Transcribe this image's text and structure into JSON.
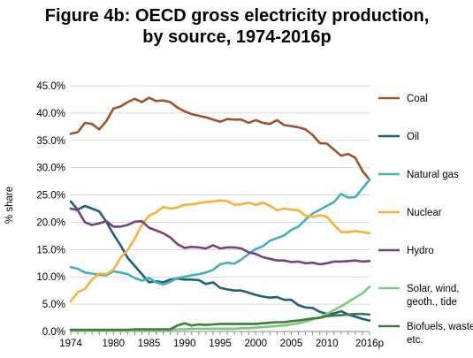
{
  "chart_data": {
    "type": "line",
    "title": "Figure 4b: OECD gross electricity production,",
    "subtitle": "by source, 1974-2016p",
    "ylabel": "% share",
    "xlabel": "",
    "ylim": [
      0,
      45
    ],
    "xlim": [
      1974,
      2016
    ],
    "y_ticks": [
      "0.0%",
      "5.0%",
      "10.0%",
      "15.0%",
      "20.0%",
      "25.0%",
      "30.0%",
      "35.0%",
      "40.0%",
      "45.0%"
    ],
    "x_ticks": [
      "1974",
      "1980",
      "1985",
      "1990",
      "1995",
      "2000",
      "2005",
      "2010",
      "2016p"
    ],
    "legend_position": "right",
    "x": [
      1974,
      1975,
      1976,
      1977,
      1978,
      1979,
      1980,
      1981,
      1982,
      1983,
      1984,
      1985,
      1986,
      1987,
      1988,
      1989,
      1990,
      1991,
      1992,
      1993,
      1994,
      1995,
      1996,
      1997,
      1998,
      1999,
      2000,
      2001,
      2002,
      2003,
      2004,
      2005,
      2006,
      2007,
      2008,
      2009,
      2010,
      2011,
      2012,
      2013,
      2014,
      2015,
      2016
    ],
    "series": [
      {
        "name": "Coal",
        "color": "#a0522d",
        "values": [
          36.2,
          36.5,
          38.2,
          38.0,
          37.0,
          38.5,
          40.8,
          41.2,
          42.0,
          42.6,
          42.0,
          42.8,
          42.2,
          42.3,
          42.0,
          41.0,
          40.3,
          39.8,
          39.5,
          39.2,
          38.8,
          38.4,
          38.9,
          38.8,
          38.8,
          38.2,
          38.7,
          38.2,
          38.0,
          38.7,
          37.8,
          37.6,
          37.4,
          37.0,
          36.0,
          34.5,
          34.4,
          33.3,
          32.2,
          32.5,
          31.8,
          29.4,
          27.8
        ]
      },
      {
        "name": "Oil",
        "color": "#1f5f80",
        "values": [
          23.8,
          22.3,
          23.0,
          22.5,
          22.0,
          20.1,
          17.8,
          15.8,
          13.5,
          12.0,
          10.5,
          9.0,
          9.2,
          9.0,
          9.5,
          9.7,
          9.5,
          9.5,
          9.4,
          8.7,
          9.0,
          8.0,
          7.7,
          7.5,
          7.5,
          7.1,
          6.7,
          6.4,
          6.2,
          6.3,
          5.8,
          5.8,
          4.8,
          4.4,
          4.3,
          3.6,
          3.2,
          3.3,
          3.7,
          3.1,
          2.7,
          2.3,
          2.0
        ]
      },
      {
        "name": "Natural gas",
        "color": "#3fb1c2",
        "values": [
          11.8,
          11.5,
          10.8,
          10.6,
          10.4,
          10.3,
          11.0,
          10.8,
          10.5,
          9.8,
          9.3,
          9.8,
          9.0,
          8.6,
          9.1,
          9.8,
          10.0,
          10.3,
          10.5,
          10.8,
          11.3,
          12.3,
          12.6,
          12.4,
          13.2,
          14.2,
          15.1,
          15.6,
          16.6,
          17.1,
          17.6,
          18.6,
          19.2,
          20.5,
          21.6,
          22.3,
          23.0,
          23.7,
          25.2,
          24.5,
          24.6,
          26.2,
          27.8
        ]
      },
      {
        "name": "Nuclear",
        "color": "#fbb03b",
        "values": [
          5.5,
          7.2,
          7.8,
          9.5,
          10.6,
          10.5,
          11.3,
          13.5,
          14.9,
          17.0,
          19.5,
          21.2,
          21.8,
          22.8,
          22.5,
          22.7,
          23.2,
          23.3,
          23.5,
          23.7,
          23.8,
          24.0,
          23.9,
          23.2,
          23.3,
          23.6,
          23.2,
          23.6,
          23.0,
          22.2,
          22.5,
          22.3,
          22.2,
          21.2,
          21.0,
          21.3,
          21.0,
          19.5,
          18.2,
          18.2,
          18.4,
          18.2,
          18.0
        ]
      },
      {
        "name": "Hydro",
        "color": "#7b3f7d",
        "values": [
          22.5,
          22.2,
          20.0,
          19.5,
          19.8,
          20.2,
          19.2,
          19.2,
          19.5,
          20.1,
          20.2,
          19.0,
          18.5,
          18.0,
          17.2,
          16.0,
          15.3,
          15.5,
          15.4,
          15.2,
          15.8,
          15.2,
          15.4,
          15.4,
          15.2,
          14.5,
          14.2,
          13.6,
          13.3,
          13.0,
          13.0,
          12.7,
          12.8,
          12.5,
          12.6,
          12.3,
          12.5,
          12.8,
          12.8,
          12.9,
          13.0,
          12.8,
          12.9
        ]
      },
      {
        "name": "Solar, wind, geoth., tide",
        "color": "#7ec87c",
        "values": [
          0.2,
          0.2,
          0.2,
          0.2,
          0.2,
          0.2,
          0.2,
          0.2,
          0.2,
          0.2,
          0.3,
          0.3,
          0.3,
          0.3,
          0.3,
          0.4,
          0.4,
          0.5,
          0.5,
          0.5,
          0.5,
          0.5,
          0.5,
          0.5,
          0.6,
          0.6,
          0.7,
          0.8,
          0.9,
          1.0,
          1.1,
          1.3,
          1.5,
          1.8,
          2.2,
          2.6,
          3.2,
          3.9,
          4.6,
          5.4,
          6.2,
          7.0,
          8.2
        ]
      },
      {
        "name": "Biofuels, waste, etc.",
        "color": "#3b7f3b",
        "values": [
          0.3,
          0.3,
          0.3,
          0.3,
          0.3,
          0.3,
          0.3,
          0.3,
          0.3,
          0.4,
          0.4,
          0.4,
          0.4,
          0.4,
          0.4,
          1.1,
          1.5,
          1.1,
          1.3,
          1.2,
          1.3,
          1.4,
          1.4,
          1.4,
          1.4,
          1.4,
          1.4,
          1.5,
          1.6,
          1.7,
          1.7,
          1.9,
          2.0,
          2.2,
          2.4,
          2.5,
          2.8,
          2.9,
          3.0,
          3.1,
          3.2,
          3.2,
          3.1
        ]
      }
    ]
  }
}
